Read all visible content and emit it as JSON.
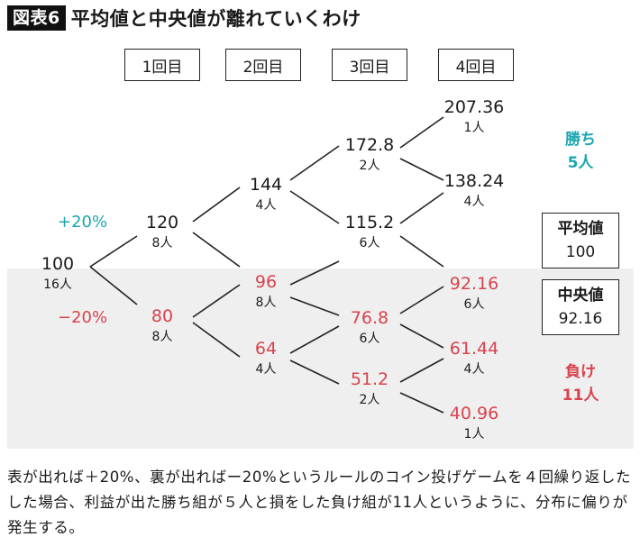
{
  "header": {
    "badge": "図表6",
    "title": "平均値と中央値が離れていくわけ"
  },
  "rounds": [
    "1回目",
    "2回目",
    "3回目",
    "4回目"
  ],
  "nodes": {
    "start": {
      "value": "100",
      "count": "16人"
    },
    "r1_up": {
      "value": "120",
      "count": "8人"
    },
    "r1_down": {
      "value": "80",
      "count": "8人"
    },
    "r2_uu": {
      "value": "144",
      "count": "4人"
    },
    "r2_ud": {
      "value": "96",
      "count": "8人"
    },
    "r2_dd": {
      "value": "64",
      "count": "4人"
    },
    "r3_uuu": {
      "value": "172.8",
      "count": "2人"
    },
    "r3_uud": {
      "value": "115.2",
      "count": "6人"
    },
    "r3_udd": {
      "value": "76.8",
      "count": "6人"
    },
    "r3_ddd": {
      "value": "51.2",
      "count": "2人"
    },
    "r4_4u": {
      "value": "207.36",
      "count": "1人"
    },
    "r4_3u": {
      "value": "138.24",
      "count": "4人"
    },
    "r4_2u": {
      "value": "92.16",
      "count": "6人"
    },
    "r4_1u": {
      "value": "61.44",
      "count": "4人"
    },
    "r4_0u": {
      "value": "40.96",
      "count": "1人"
    }
  },
  "change": {
    "up": "+20%",
    "down": "−20%"
  },
  "stats": {
    "mean": {
      "label": "平均値",
      "value": "100"
    },
    "median": {
      "label": "中央値",
      "value": "92.16"
    }
  },
  "groups": {
    "win": {
      "line1": "勝ち",
      "line2": "5人"
    },
    "lose": {
      "line1": "負け",
      "line2": "11人"
    }
  },
  "caption": "表が出れば＋20%、裏が出ればー20%というルールのコイン投げゲームを４回繰り返したした場合、利益が出た勝ち組が５人と損をした負け組が11人というように、分布に偏りが発生する。",
  "colors": {
    "win": "#1aa6b0",
    "lose": "#d8434e",
    "loss_band": "#efefef"
  }
}
